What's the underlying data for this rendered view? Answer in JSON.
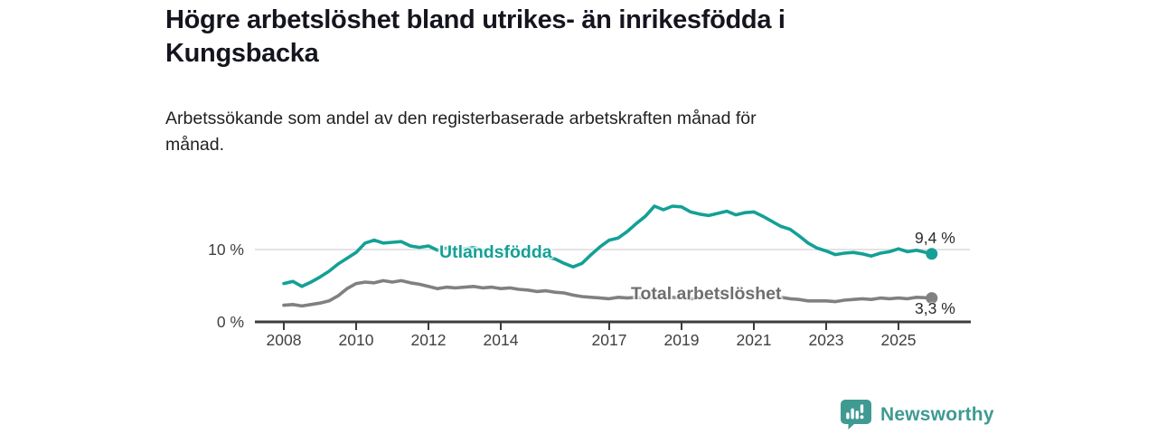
{
  "header": {
    "title_lines": [
      "Högre arbetslöshet bland utrikes- än inrikesfödda i",
      "Kungsbacka"
    ],
    "subtitle_lines": [
      "Arbetssökande som andel av den registerbaserade arbetskraften månad för",
      "månad."
    ]
  },
  "style": {
    "background": "#FFFFFF",
    "title_color": "#15151F",
    "body_text_color": "#212121",
    "axis_color": "#3C3C3C",
    "grid_color": "#DBDBDB",
    "tick_label_color": "#404040",
    "value_label_color": "#2B2B2B",
    "brand_color": "#3F9A92"
  },
  "chart_data": {
    "type": "line",
    "title": "Högre arbetslöshet bland utrikes- än inrikesfödda i Kungsbacka",
    "subtitle": "Arbetssökande som andel av den registerbaserade arbetskraften månad för månad.",
    "grid": "horizontal-at-10-only",
    "legend_position": "inline-labels-on-lines",
    "x_axis": {
      "unit": "year",
      "range": [
        2007.2,
        2027.0
      ],
      "tick_values": [
        2008,
        2010,
        2012,
        2014,
        2017,
        2019,
        2021,
        2023,
        2025
      ],
      "tick_labels": [
        "2008",
        "2010",
        "2012",
        "2014",
        "2017",
        "2019",
        "2021",
        "2023",
        "2025"
      ]
    },
    "y_axis": {
      "unit": "percent",
      "range": [
        0,
        18.9
      ],
      "tick_values": [
        0,
        10
      ],
      "tick_labels": [
        "0 %",
        "10 %"
      ],
      "gridline_at": 10
    },
    "series": [
      {
        "name": "Utlandsfödda",
        "color": "#14A096",
        "end_label": "9,4 %",
        "end_value": 9.4,
        "x": [
          2008,
          2008.25,
          2008.5,
          2008.75,
          2009,
          2009.25,
          2009.5,
          2009.75,
          2010,
          2010.25,
          2010.5,
          2010.75,
          2011,
          2011.25,
          2011.5,
          2011.75,
          2012,
          2012.25,
          2012.5,
          2012.75,
          2013,
          2013.25,
          2013.5,
          2013.75,
          2014,
          2014.25,
          2014.5,
          2014.75,
          2015,
          2015.25,
          2015.5,
          2015.75,
          2016,
          2016.25,
          2016.5,
          2016.75,
          2017,
          2017.25,
          2017.5,
          2017.75,
          2018,
          2018.25,
          2018.5,
          2018.75,
          2019,
          2019.25,
          2019.5,
          2019.75,
          2020,
          2020.25,
          2020.5,
          2020.75,
          2021,
          2021.25,
          2021.5,
          2021.75,
          2022,
          2022.25,
          2022.5,
          2022.75,
          2023,
          2023.25,
          2023.5,
          2023.75,
          2024,
          2024.25,
          2024.5,
          2024.75,
          2025,
          2025.25,
          2025.5,
          2025.92
        ],
        "values": [
          5.3,
          5.6,
          4.9,
          5.5,
          6.2,
          7.0,
          8.0,
          8.8,
          9.6,
          10.9,
          11.3,
          10.9,
          11.0,
          11.1,
          10.5,
          10.3,
          10.5,
          9.9,
          10.2,
          10.0,
          10.1,
          10.3,
          9.9,
          10.0,
          9.8,
          9.9,
          9.6,
          9.4,
          9.2,
          9.0,
          8.7,
          8.1,
          7.6,
          8.1,
          9.3,
          10.4,
          11.3,
          11.6,
          12.5,
          13.6,
          14.6,
          16.0,
          15.5,
          16.0,
          15.9,
          15.2,
          14.9,
          14.7,
          15.0,
          15.3,
          14.8,
          15.1,
          15.2,
          14.6,
          13.9,
          13.2,
          12.8,
          11.9,
          10.9,
          10.2,
          9.8,
          9.3,
          9.5,
          9.6,
          9.4,
          9.1,
          9.5,
          9.7,
          10.1,
          9.7,
          9.9,
          9.4
        ]
      },
      {
        "name": "Total arbetslöshet",
        "color": "#808080",
        "label_color": "#6E6E6E",
        "end_label": "3,3 %",
        "end_value": 3.3,
        "x": [
          2008,
          2008.25,
          2008.5,
          2008.75,
          2009,
          2009.25,
          2009.5,
          2009.75,
          2010,
          2010.25,
          2010.5,
          2010.75,
          2011,
          2011.25,
          2011.5,
          2011.75,
          2012,
          2012.25,
          2012.5,
          2012.75,
          2013,
          2013.25,
          2013.5,
          2013.75,
          2014,
          2014.25,
          2014.5,
          2014.75,
          2015,
          2015.25,
          2015.5,
          2015.75,
          2016,
          2016.25,
          2016.5,
          2016.75,
          2017,
          2017.25,
          2017.5,
          2017.75,
          2018,
          2018.25,
          2018.5,
          2018.75,
          2019,
          2019.25,
          2019.5,
          2019.75,
          2020,
          2020.25,
          2020.5,
          2020.75,
          2021,
          2021.25,
          2021.5,
          2021.75,
          2022,
          2022.25,
          2022.5,
          2022.75,
          2023,
          2023.25,
          2023.5,
          2023.75,
          2024,
          2024.25,
          2024.5,
          2024.75,
          2025,
          2025.25,
          2025.5,
          2025.92
        ],
        "values": [
          2.3,
          2.4,
          2.2,
          2.4,
          2.6,
          2.9,
          3.6,
          4.6,
          5.3,
          5.5,
          5.4,
          5.7,
          5.5,
          5.7,
          5.4,
          5.2,
          4.9,
          4.6,
          4.8,
          4.7,
          4.8,
          4.9,
          4.7,
          4.8,
          4.6,
          4.7,
          4.5,
          4.4,
          4.2,
          4.3,
          4.1,
          4.0,
          3.7,
          3.5,
          3.4,
          3.3,
          3.2,
          3.4,
          3.3,
          3.4,
          3.3,
          3.4,
          3.3,
          3.4,
          3.3,
          3.2,
          3.3,
          3.4,
          3.5,
          4.0,
          4.2,
          4.1,
          4.0,
          3.8,
          3.6,
          3.4,
          3.2,
          3.1,
          2.9,
          2.9,
          2.9,
          2.8,
          3.0,
          3.1,
          3.2,
          3.1,
          3.3,
          3.2,
          3.3,
          3.2,
          3.4,
          3.3
        ]
      }
    ]
  },
  "footer": {
    "brand": "Newsworthy",
    "logo_icon": "newsworthy-chart-bubble-icon"
  }
}
